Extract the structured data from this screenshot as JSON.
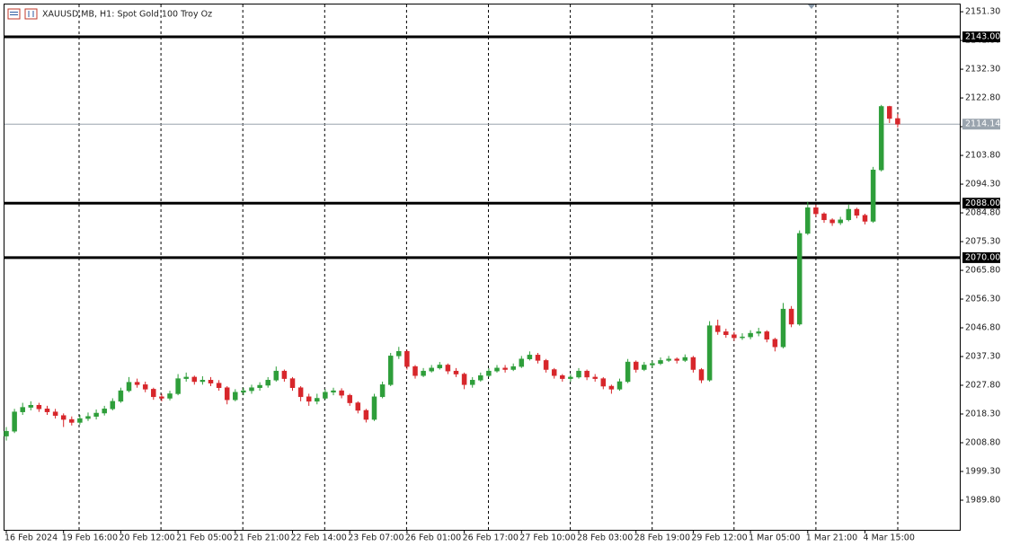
{
  "chart_data": {
    "type": "candlestick",
    "title": "XAUUSD.MB, H1:  Spot Gold 100 Troy Oz",
    "categories": [
      "16 Feb 2024",
      null,
      null,
      null,
      null,
      null,
      null,
      "19 Feb 16:00",
      null,
      null,
      null,
      null,
      null,
      null,
      "20 Feb 12:00",
      null,
      null,
      null,
      null,
      null,
      null,
      "21 Feb 05:00",
      null,
      null,
      null,
      null,
      null,
      null,
      "21 Feb 21:00",
      null,
      null,
      null,
      null,
      null,
      null,
      "22 Feb 14:00",
      null,
      null,
      null,
      null,
      null,
      null,
      "23 Feb 07:00",
      null,
      null,
      null,
      null,
      null,
      null,
      "26 Feb 01:00",
      null,
      null,
      null,
      null,
      null,
      null,
      "26 Feb 17:00",
      null,
      null,
      null,
      null,
      null,
      null,
      "27 Feb 10:00",
      null,
      null,
      null,
      null,
      null,
      null,
      "28 Feb 03:00",
      null,
      null,
      null,
      null,
      null,
      null,
      "28 Feb 19:00",
      null,
      null,
      null,
      null,
      null,
      null,
      "29 Feb 12:00",
      null,
      null,
      null,
      null,
      null,
      null,
      "1 Mar 05:00",
      null,
      null,
      null,
      null,
      null,
      null,
      "1 Mar 21:00",
      null,
      null,
      null,
      null,
      null,
      null,
      "4 Mar 15:00",
      null,
      null,
      null,
      null
    ],
    "open": [
      2011.0,
      2012.6,
      2019.0,
      2020.5,
      2021.2,
      2020.0,
      2019.0,
      2017.8,
      2016.5,
      2015.5,
      2016.8,
      2017.5,
      2018.6,
      2020.0,
      2022.5,
      2026.0,
      2028.8,
      2028.0,
      2026.5,
      2024.0,
      2023.5,
      2025.0,
      2030.0,
      2030.5,
      2029.0,
      2029.5,
      2028.5,
      2027.0,
      2023.0,
      2025.5,
      2026.0,
      2027.0,
      2027.8,
      2029.5,
      2032.5,
      2030.0,
      2027.0,
      2024.0,
      2022.5,
      2023.5,
      2025.5,
      2026.0,
      2024.5,
      2022.0,
      2019.5,
      2016.5,
      2024.0,
      2028.0,
      2037.5,
      2039.0,
      2034.0,
      2031.0,
      2032.5,
      2033.5,
      2034.5,
      2032.5,
      2031.5,
      2028.0,
      2029.5,
      2031.0,
      2032.5,
      2033.5,
      2033.0,
      2034.0,
      2036.5,
      2037.8,
      2036.0,
      2033.0,
      2031.0,
      2030.0,
      2030.5,
      2032.5,
      2030.5,
      2030.0,
      2027.5,
      2026.5,
      2029.0,
      2035.5,
      2033.0,
      2034.5,
      2035.0,
      2036.0,
      2036.5,
      2036.0,
      2037.0,
      2033.0,
      2029.5,
      2047.5,
      2045.5,
      2044.5,
      2043.5,
      2043.8,
      2045.0,
      2045.5,
      2043.0,
      2040.5,
      2053.0,
      2048.0,
      2078.0,
      2086.5,
      2084.5,
      2082.5,
      2081.5,
      2082.5,
      2086.0,
      2084.0,
      2082.0,
      2099.0,
      2120.0,
      2116.0
    ],
    "high": [
      2014.0,
      2020.0,
      2022.0,
      2022.5,
      2022.0,
      2021.0,
      2020.0,
      2018.5,
      2017.5,
      2018.0,
      2018.8,
      2019.8,
      2021.0,
      2023.5,
      2027.0,
      2030.5,
      2030.0,
      2029.0,
      2027.0,
      2025.0,
      2026.0,
      2031.5,
      2032.0,
      2031.0,
      2030.8,
      2030.5,
      2029.5,
      2027.5,
      2026.5,
      2027.0,
      2028.0,
      2028.8,
      2030.5,
      2034.0,
      2033.0,
      2030.5,
      2027.5,
      2025.0,
      2025.0,
      2026.5,
      2027.0,
      2026.8,
      2025.0,
      2022.5,
      2020.0,
      2025.0,
      2029.0,
      2038.5,
      2040.5,
      2039.5,
      2034.5,
      2033.5,
      2034.5,
      2035.5,
      2035.0,
      2033.5,
      2032.0,
      2030.5,
      2032.0,
      2033.5,
      2034.5,
      2034.5,
      2035.0,
      2037.5,
      2039.0,
      2038.5,
      2036.5,
      2033.5,
      2031.5,
      2031.5,
      2033.5,
      2033.0,
      2031.5,
      2030.5,
      2028.0,
      2030.0,
      2036.5,
      2036.0,
      2035.5,
      2036.0,
      2037.0,
      2037.5,
      2037.0,
      2038.0,
      2037.5,
      2033.5,
      2049.0,
      2049.5,
      2046.5,
      2045.5,
      2045.0,
      2046.0,
      2046.8,
      2046.0,
      2043.5,
      2055.0,
      2054.0,
      2079.0,
      2088.5,
      2087.5,
      2085.0,
      2083.0,
      2083.5,
      2087.5,
      2086.5,
      2084.5,
      2100.0,
      2120.5,
      2120.2,
      2117.5
    ],
    "low": [
      2009.5,
      2012.0,
      2018.0,
      2019.5,
      2019.0,
      2018.0,
      2016.8,
      2014.0,
      2014.5,
      2014.8,
      2016.0,
      2016.5,
      2017.8,
      2019.5,
      2022.0,
      2025.5,
      2027.0,
      2025.5,
      2023.0,
      2022.5,
      2022.8,
      2024.5,
      2029.0,
      2028.0,
      2028.0,
      2027.5,
      2026.0,
      2021.5,
      2022.5,
      2024.5,
      2025.0,
      2026.0,
      2027.0,
      2029.0,
      2029.0,
      2026.0,
      2022.5,
      2021.0,
      2021.5,
      2023.0,
      2024.5,
      2023.5,
      2021.0,
      2018.5,
      2015.5,
      2016.0,
      2023.5,
      2027.5,
      2036.5,
      2033.0,
      2030.0,
      2030.5,
      2032.0,
      2033.0,
      2031.5,
      2030.5,
      2026.5,
      2027.0,
      2029.0,
      2030.5,
      2032.0,
      2032.0,
      2032.5,
      2033.5,
      2036.0,
      2035.0,
      2032.0,
      2030.0,
      2029.0,
      2029.0,
      2030.0,
      2029.5,
      2029.0,
      2026.5,
      2025.0,
      2026.0,
      2028.5,
      2032.0,
      2032.5,
      2033.5,
      2034.5,
      2035.5,
      2035.0,
      2035.5,
      2032.0,
      2028.5,
      2029.0,
      2044.5,
      2043.5,
      2042.5,
      2042.8,
      2043.0,
      2044.0,
      2042.0,
      2039.0,
      2040.0,
      2047.0,
      2047.5,
      2077.5,
      2083.5,
      2081.5,
      2080.5,
      2080.8,
      2082.0,
      2083.0,
      2081.0,
      2081.5,
      2098.5,
      2114.5,
      2113.0
    ],
    "close": [
      2012.6,
      2019.0,
      2020.5,
      2021.2,
      2020.0,
      2019.0,
      2017.8,
      2016.5,
      2015.5,
      2016.8,
      2017.5,
      2018.6,
      2020.0,
      2022.5,
      2026.0,
      2028.8,
      2028.0,
      2026.5,
      2024.0,
      2023.5,
      2025.0,
      2030.0,
      2030.5,
      2029.0,
      2029.5,
      2028.5,
      2027.0,
      2023.0,
      2025.5,
      2026.0,
      2027.0,
      2027.8,
      2029.5,
      2032.5,
      2030.0,
      2027.0,
      2024.0,
      2022.5,
      2023.5,
      2025.5,
      2026.0,
      2024.5,
      2022.0,
      2019.5,
      2016.5,
      2024.0,
      2028.0,
      2037.5,
      2039.0,
      2034.0,
      2031.0,
      2032.5,
      2033.5,
      2034.5,
      2032.5,
      2031.5,
      2028.0,
      2029.5,
      2031.0,
      2032.5,
      2033.5,
      2033.0,
      2034.0,
      2036.5,
      2037.8,
      2036.0,
      2033.0,
      2031.0,
      2030.0,
      2030.5,
      2032.5,
      2030.5,
      2030.0,
      2027.5,
      2026.5,
      2029.0,
      2035.5,
      2033.0,
      2034.5,
      2035.0,
      2036.0,
      2036.5,
      2036.0,
      2037.0,
      2033.0,
      2029.5,
      2047.5,
      2045.5,
      2044.5,
      2043.5,
      2043.8,
      2045.0,
      2045.5,
      2043.0,
      2040.5,
      2053.0,
      2048.0,
      2078.0,
      2086.5,
      2084.5,
      2082.5,
      2081.5,
      2082.5,
      2086.0,
      2084.0,
      2082.0,
      2099.0,
      2120.0,
      2116.0,
      2114.14
    ],
    "up_color": "#2e9e3a",
    "down_color": "#d7262b",
    "ylim": [
      1980.0,
      2153.7
    ],
    "yticks": [
      {
        "value": 1989.8,
        "label": "1989.80"
      },
      {
        "value": 1999.3,
        "label": "1999.30"
      },
      {
        "value": 2008.8,
        "label": "2008.80"
      },
      {
        "value": 2018.3,
        "label": "2018.30"
      },
      {
        "value": 2027.8,
        "label": "2027.80"
      },
      {
        "value": 2037.3,
        "label": "2037.30"
      },
      {
        "value": 2046.8,
        "label": "2046.80"
      },
      {
        "value": 2056.3,
        "label": "2056.30"
      },
      {
        "value": 2065.8,
        "label": "2065.80"
      },
      {
        "value": 2075.3,
        "label": "2075.30"
      },
      {
        "value": 2084.8,
        "label": "2084.80"
      },
      {
        "value": 2094.3,
        "label": "2094.30"
      },
      {
        "value": 2103.8,
        "label": "2103.80"
      },
      {
        "value": 2113.3,
        "label": "2113.30"
      },
      {
        "value": 2122.8,
        "label": "2122.80"
      },
      {
        "value": 2132.3,
        "label": "2132.30"
      },
      {
        "value": 2141.8,
        "label": "2141.80"
      },
      {
        "value": 2151.3,
        "label": "2151.30"
      }
    ],
    "levels": [
      {
        "value": 2143,
        "label": "2143.00"
      },
      {
        "value": 2088,
        "label": "2088.00"
      },
      {
        "value": 2070,
        "label": "2070.00"
      }
    ],
    "current_price": {
      "value": 2114.14,
      "label": "2114.14"
    }
  }
}
